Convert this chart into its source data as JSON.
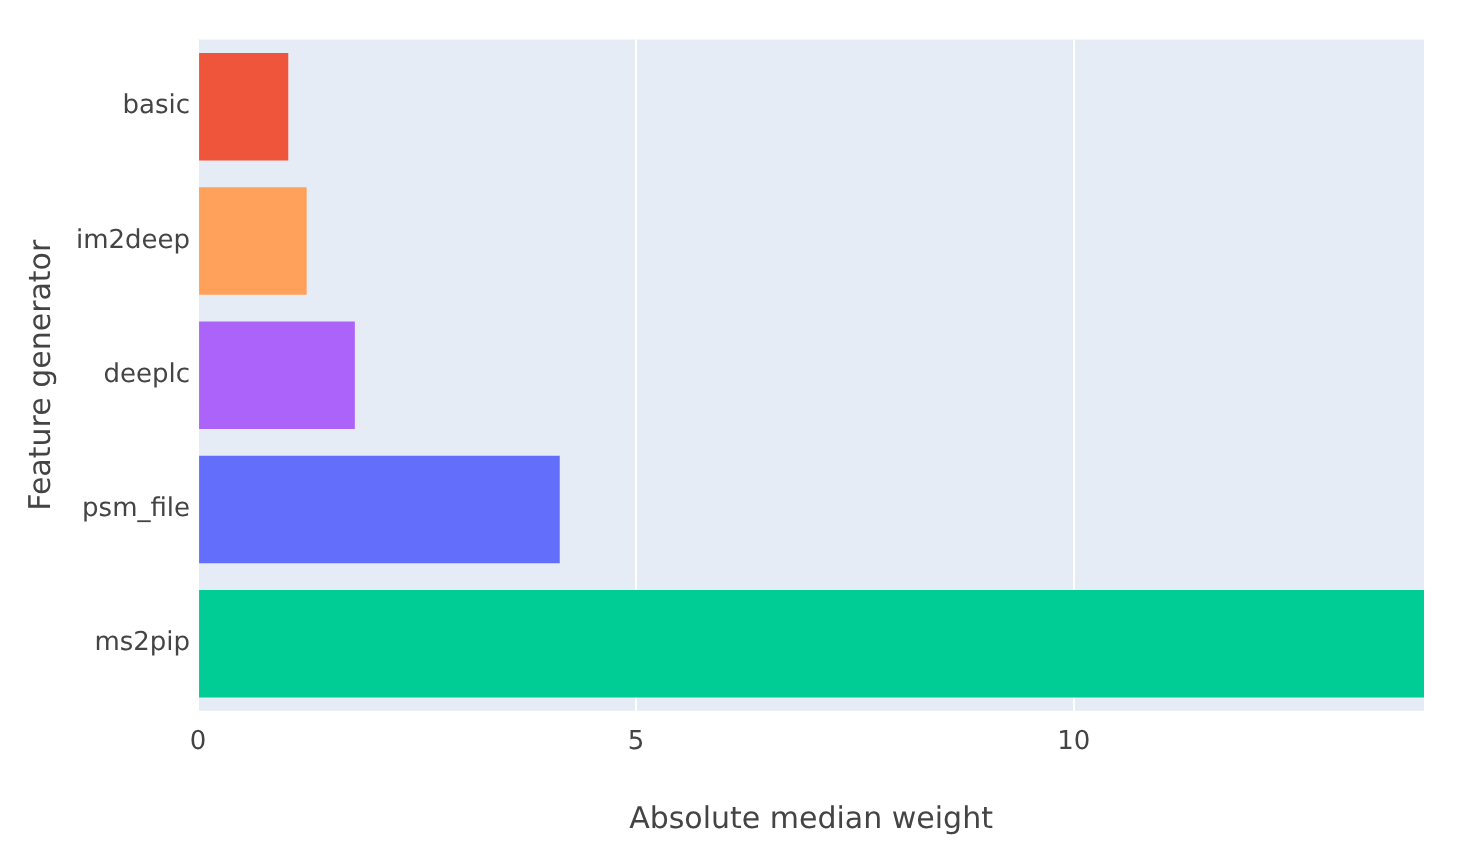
{
  "chart_data": {
    "type": "bar",
    "orientation": "horizontal",
    "xlabel": "Absolute median weight",
    "ylabel": "Feature generator",
    "categories": [
      "basic",
      "im2deep",
      "deeplc",
      "psm_file",
      "ms2pip"
    ],
    "values": [
      1.03,
      1.24,
      1.79,
      4.13,
      14.0
    ],
    "colors": [
      "#ef553b",
      "#ffa15a",
      "#ab63fa",
      "#636efa",
      "#00cc96"
    ],
    "xlim": [
      0,
      14.0
    ],
    "xticks": [
      0,
      5,
      10
    ],
    "grid": "x",
    "legend": false
  }
}
